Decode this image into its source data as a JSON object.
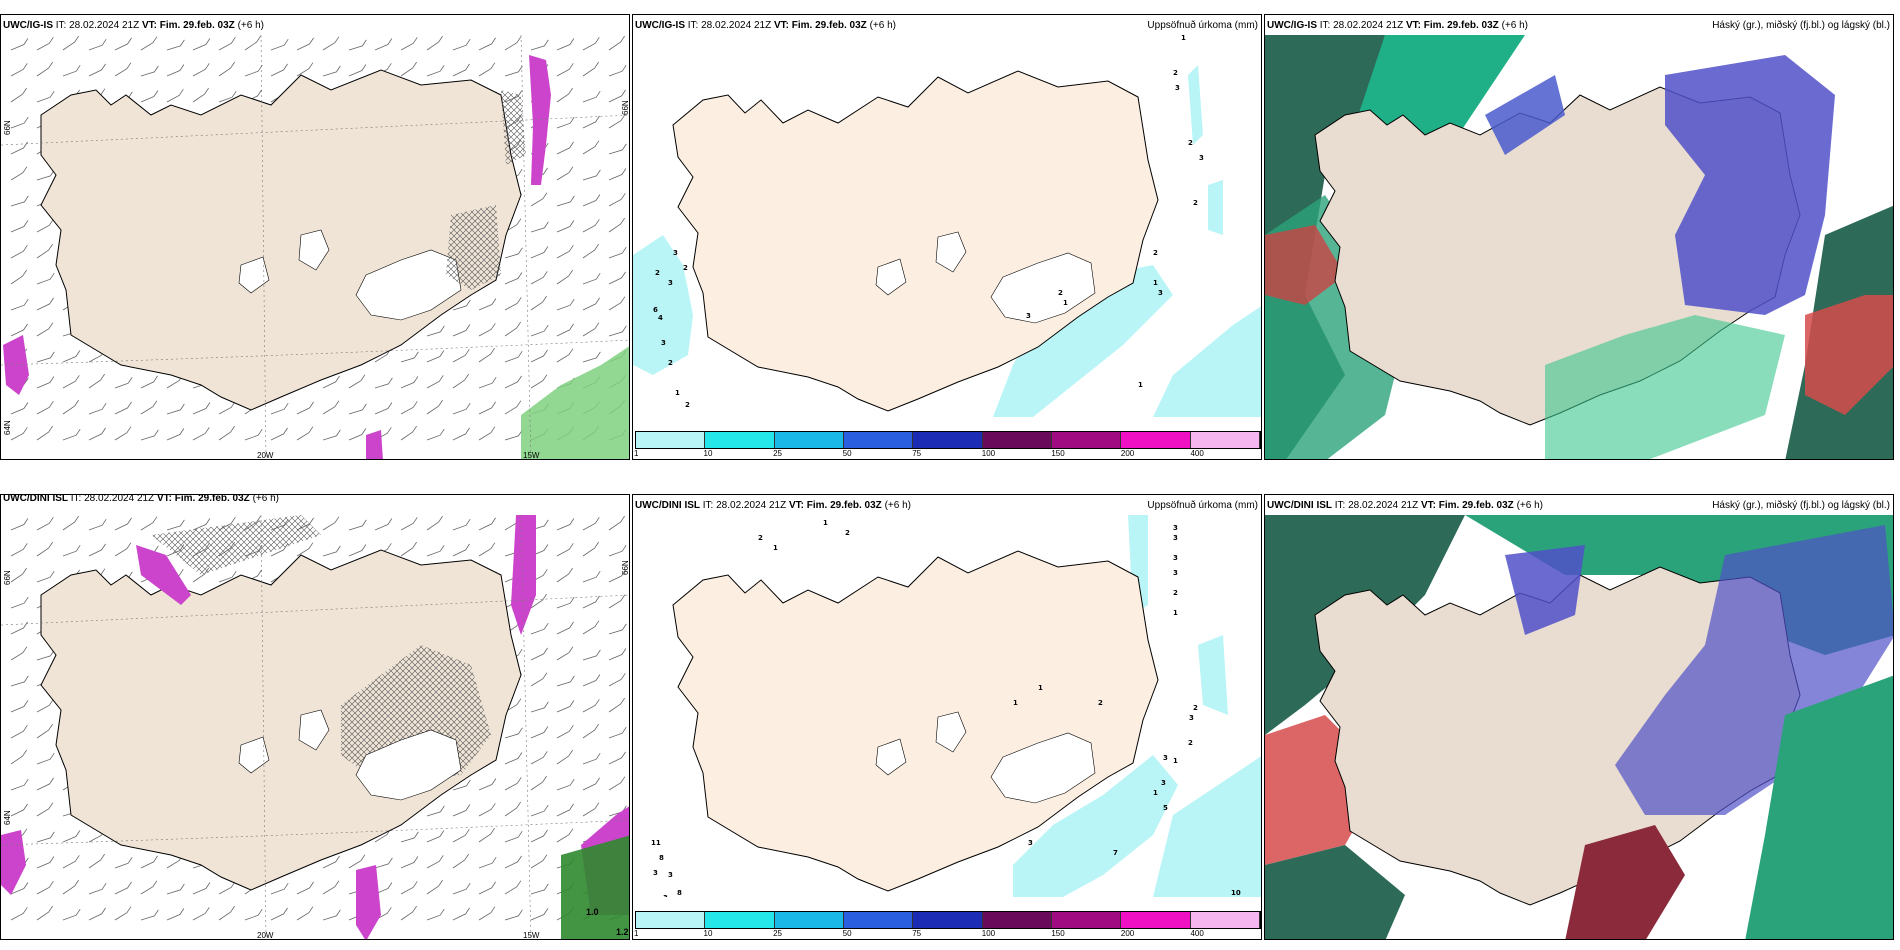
{
  "panels": [
    {
      "id": "p1",
      "model": "UWC/IG-IS",
      "it_label": "IT:",
      "it": "28.02.2024 21Z",
      "vt_label": "VT:",
      "vt": "Fim. 29.feb. 03Z",
      "lead": "(+6 h)",
      "right_title": "",
      "lon_labels": [
        "20W",
        "15W"
      ],
      "lat_labels": [
        "66N",
        "66N",
        "64N"
      ]
    },
    {
      "id": "p2",
      "model": "UWC/IG-IS",
      "it_label": "IT:",
      "it": "28.02.2024 21Z",
      "vt_label": "VT:",
      "vt": "Fim. 29.feb. 03Z",
      "lead": "(+6 h)",
      "right_title": "Uppsöfnuð úrkoma (mm)",
      "lat_labels": [
        "66N"
      ],
      "point_values": [
        "1",
        "2",
        "3",
        "2",
        "3",
        "2",
        "3",
        "1",
        "2",
        "1",
        "2",
        "3",
        "4",
        "6",
        "3",
        "2",
        "1",
        "2",
        "3",
        "2",
        "2",
        "3",
        "1"
      ]
    },
    {
      "id": "p3",
      "model": "UWC/IG-IS",
      "it_label": "IT:",
      "it": "28.02.2024 21Z",
      "vt_label": "VT:",
      "vt": "Fim. 29.feb. 03Z",
      "lead": "(+6 h)",
      "right_title": "Háský (gr.), miðský (fj.bl.) og lágský (bl.)"
    },
    {
      "id": "p4",
      "model": "UWC/DINI ISL",
      "it_label": "IT:",
      "it": "28.02.2024 21Z",
      "vt_label": "VT:",
      "vt": "Fim. 29.feb. 03Z",
      "lead": "(+6 h)",
      "right_title": "",
      "lon_labels": [
        "20W",
        "15W"
      ],
      "lat_labels": [
        "66N",
        "66N",
        "64N"
      ],
      "contour_values": [
        "1.0",
        "1.2"
      ]
    },
    {
      "id": "p5",
      "model": "UWC/DINI ISL",
      "it_label": "IT:",
      "it": "28.02.2024 21Z",
      "vt_label": "VT:",
      "vt": "Fim. 29.feb. 03Z",
      "lead": "(+6 h)",
      "right_title": "Uppsöfnuð úrkoma (mm)",
      "point_values": [
        "2",
        "1",
        "2",
        "1",
        "3",
        "3",
        "3",
        "3",
        "2",
        "1",
        "1",
        "1",
        "2",
        "2",
        "3",
        "2",
        "1",
        "3",
        "3",
        "1",
        "5",
        "7",
        "3",
        "10",
        "11",
        "8",
        "3",
        "8",
        "6",
        "3",
        "3"
      ]
    },
    {
      "id": "p6",
      "model": "UWC/DINI ISL",
      "it_label": "IT:",
      "it": "28.02.2024 21Z",
      "vt_label": "VT:",
      "vt": "Fim. 29.feb. 03Z",
      "lead": "(+6 h)",
      "right_title": "Háský (gr.), miðský (fj.bl.) og lágský (bl.)"
    }
  ],
  "colorbar": {
    "ticks": [
      "1",
      "10",
      "25",
      "50",
      "75",
      "100",
      "150",
      "200",
      "400"
    ],
    "colors": [
      "#b9f5f7",
      "#25e6e8",
      "#19b8e6",
      "#2a5fe0",
      "#1d2cb5",
      "#6a0a5a",
      "#a10b82",
      "#f011c4",
      "#f5b5ef"
    ]
  },
  "colors": {
    "land": "#efe4d6",
    "land_light": "#fcefe2",
    "coast": "#000000",
    "cyan_precip": "#b9f5f7",
    "magenta": "#cc44cc"
  }
}
